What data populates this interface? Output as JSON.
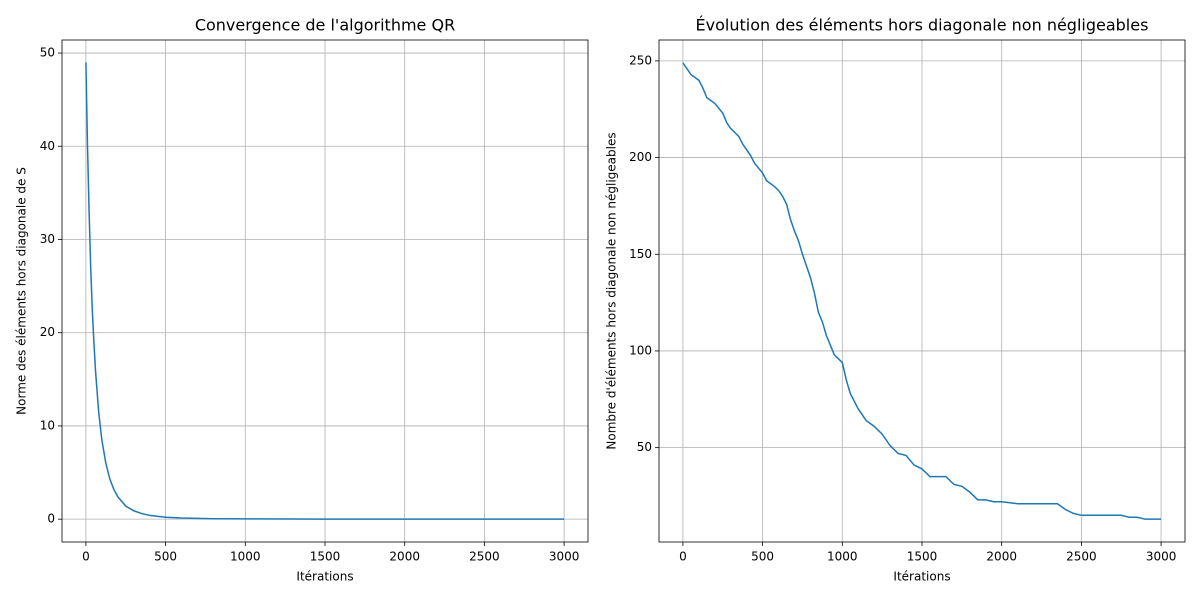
{
  "chart_data": [
    {
      "type": "line",
      "title": "Convergence de l'algorithme QR",
      "x_label": "Itérations",
      "y_label": "Norme des éléments hors diagonale de S",
      "x": [
        0,
        10,
        20,
        30,
        40,
        50,
        60,
        80,
        100,
        125,
        150,
        175,
        200,
        250,
        300,
        350,
        400,
        500,
        600,
        800,
        1000,
        1500,
        2000,
        2500,
        3000
      ],
      "series": [
        {
          "color": "#1f77b4",
          "values": [
            49,
            40,
            33,
            27,
            22.5,
            19,
            16,
            11.5,
            8.5,
            6,
            4.3,
            3.2,
            2.4,
            1.4,
            0.9,
            0.6,
            0.4,
            0.2,
            0.12,
            0.05,
            0.03,
            0.01,
            0.005,
            0.002,
            0.001
          ]
        }
      ],
      "xlim": [
        -150,
        3150
      ],
      "xticks": [
        0,
        500,
        1000,
        1500,
        2000,
        2500,
        3000
      ],
      "ylim": [
        -2.45,
        51.4
      ],
      "yticks": [
        0,
        10,
        20,
        30,
        40,
        50
      ],
      "grid": true
    },
    {
      "type": "line",
      "title": "Évolution des éléments hors diagonale non négligeables",
      "x_label": "Itérations",
      "y_label": "Nombre d'éléments hors diagonale non négligeables",
      "x": [
        0,
        25,
        50,
        100,
        125,
        150,
        200,
        250,
        275,
        300,
        350,
        375,
        400,
        425,
        450,
        500,
        525,
        575,
        600,
        625,
        650,
        675,
        700,
        725,
        750,
        775,
        800,
        825,
        850,
        875,
        900,
        950,
        1000,
        1025,
        1050,
        1100,
        1150,
        1200,
        1250,
        1300,
        1350,
        1400,
        1450,
        1500,
        1550,
        1600,
        1650,
        1700,
        1750,
        1800,
        1850,
        1900,
        1950,
        2000,
        2100,
        2200,
        2350,
        2400,
        2450,
        2500,
        2600,
        2750,
        2800,
        2850,
        2900,
        3000
      ],
      "series": [
        {
          "color": "#1f77b4",
          "values": [
            249,
            246,
            243,
            240,
            236,
            231,
            228,
            223,
            218,
            215,
            211,
            207,
            204,
            201,
            197,
            192,
            188,
            185,
            183,
            180,
            176,
            168,
            162,
            157,
            150,
            144,
            138,
            130,
            120,
            115,
            108,
            98,
            94,
            85,
            78,
            70,
            64,
            61,
            57,
            51,
            47,
            46,
            41,
            39,
            35,
            35,
            35,
            31,
            30,
            27,
            23,
            23,
            22,
            22,
            21,
            21,
            21,
            18,
            16,
            15,
            15,
            15,
            14,
            14,
            13,
            13
          ]
        }
      ],
      "xlim": [
        -150,
        3150
      ],
      "xticks": [
        0,
        500,
        1000,
        1500,
        2000,
        2500,
        3000
      ],
      "ylim": [
        1.2,
        260.8
      ],
      "yticks": [
        50,
        100,
        150,
        200,
        250
      ],
      "grid": true
    }
  ]
}
